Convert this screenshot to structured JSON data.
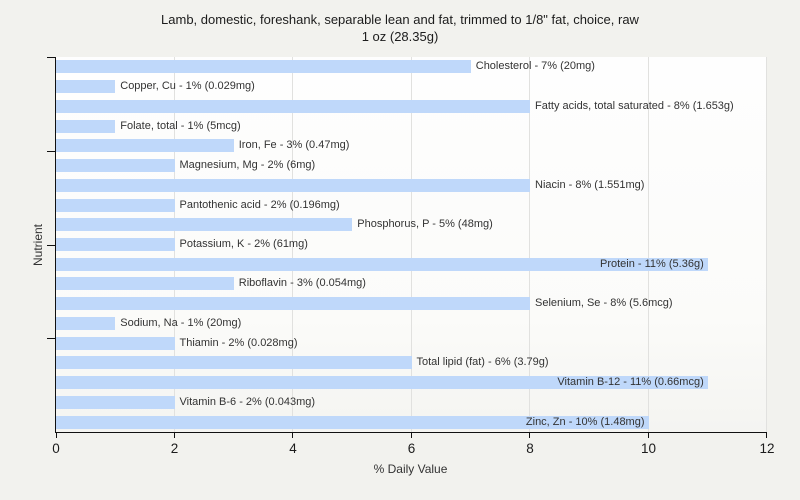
{
  "title": {
    "line1": "Lamb, domestic, foreshank, separable lean and fat, trimmed to 1/8\" fat, choice, raw",
    "line2": "1 oz (28.35g)"
  },
  "chart_data": {
    "type": "bar",
    "orientation": "horizontal",
    "title": "Lamb, domestic, foreshank, separable lean and fat, trimmed to 1/8\" fat, choice, raw — 1 oz (28.35g)",
    "xlabel": "% Daily Value",
    "ylabel": "Nutrient",
    "xlim": [
      0,
      12
    ],
    "xticks": [
      0,
      2,
      4,
      6,
      8,
      10,
      12
    ],
    "grid": "vertical",
    "legend": "none",
    "categories": [
      "Cholesterol",
      "Copper, Cu",
      "Fatty acids, total saturated",
      "Folate, total",
      "Iron, Fe",
      "Magnesium, Mg",
      "Niacin",
      "Pantothenic acid",
      "Phosphorus, P",
      "Potassium, K",
      "Protein",
      "Riboflavin",
      "Selenium, Se",
      "Sodium, Na",
      "Thiamin",
      "Total lipid (fat)",
      "Vitamin B-12",
      "Vitamin B-6",
      "Zinc, Zn"
    ],
    "values": [
      7,
      1,
      8,
      1,
      3,
      2,
      8,
      2,
      5,
      2,
      11,
      3,
      8,
      1,
      2,
      6,
      11,
      2,
      10
    ],
    "amounts": [
      "20mg",
      "0.029mg",
      "1.653g",
      "5mcg",
      "0.47mg",
      "6mg",
      "1.551mg",
      "0.196mg",
      "48mg",
      "61mg",
      "5.36g",
      "0.054mg",
      "5.6mcg",
      "20mg",
      "0.028mg",
      "3.79g",
      "0.66mcg",
      "0.043mg",
      "1.48mg"
    ],
    "bar_labels": [
      "Cholesterol - 7% (20mg)",
      "Copper, Cu - 1% (0.029mg)",
      "Fatty acids, total saturated - 8% (1.653g)",
      "Folate, total - 1% (5mcg)",
      "Iron, Fe - 3% (0.47mg)",
      "Magnesium, Mg - 2% (6mg)",
      "Niacin - 8% (1.551mg)",
      "Pantothenic acid - 2% (0.196mg)",
      "Phosphorus, P - 5% (48mg)",
      "Potassium, K - 2% (61mg)",
      "Protein - 11% (5.36g)",
      "Riboflavin - 3% (0.054mg)",
      "Selenium, Se - 8% (5.6mcg)",
      "Sodium, Na - 1% (20mg)",
      "Thiamin - 2% (0.028mg)",
      "Total lipid (fat) - 6% (3.79g)",
      "Vitamin B-12 - 11% (0.66mcg)",
      "Vitamin B-6 - 2% (0.043mg)",
      "Zinc, Zn - 10% (1.48mg)"
    ],
    "inside_label_min_value": 10,
    "colors": {
      "bar": "#bfd8fa",
      "page_bg": "#f2f2ee",
      "plot_bg": "#fdfdfc",
      "grid": "#e1e1df",
      "axis": "#111111",
      "text": "#333333",
      "title_text": "#1c1c1c"
    }
  }
}
